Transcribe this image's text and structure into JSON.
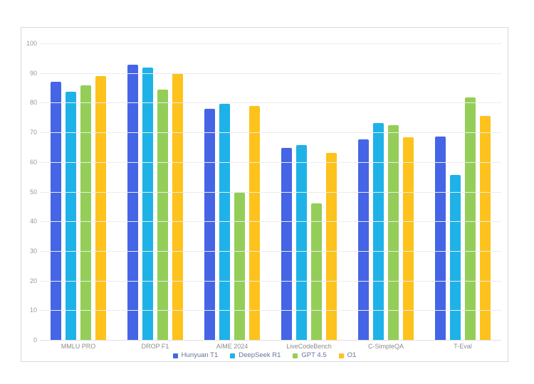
{
  "chart_data": {
    "type": "bar",
    "title": "",
    "categories": [
      "MMLU PRO",
      "DROP F1",
      "AIME 2024",
      "LiveCodeBench",
      "C-SimpleQA",
      "T-Eval"
    ],
    "series": [
      {
        "name": "Hunyuan T1",
        "color": "#4565e6",
        "values": [
          87.2,
          93.1,
          78.2,
          64.9,
          67.9,
          68.9
        ]
      },
      {
        "name": "DeepSeek R1",
        "color": "#1eb2e8",
        "values": [
          84.0,
          92.2,
          79.8,
          65.9,
          73.4,
          55.9
        ]
      },
      {
        "name": "GPT 4.5",
        "color": "#94ce58",
        "values": [
          86.1,
          84.7,
          50.0,
          46.4,
          72.6,
          81.9
        ]
      },
      {
        "name": "O1",
        "color": "#fdc21c",
        "values": [
          89.3,
          90.2,
          79.2,
          63.4,
          68.7,
          75.7
        ]
      }
    ],
    "ylim": [
      0,
      100
    ],
    "yticks": [
      0,
      10,
      20,
      30,
      40,
      50,
      60,
      70,
      80,
      90,
      100
    ],
    "grid": true,
    "legend_position": "bottom",
    "colors": {
      "gridline": "#ececec",
      "axis_label": "#999999",
      "category_label": "#8c8c8c",
      "legend_label": "#65759a",
      "card_border": "#d9d9d9",
      "background": "#ffffff"
    }
  }
}
